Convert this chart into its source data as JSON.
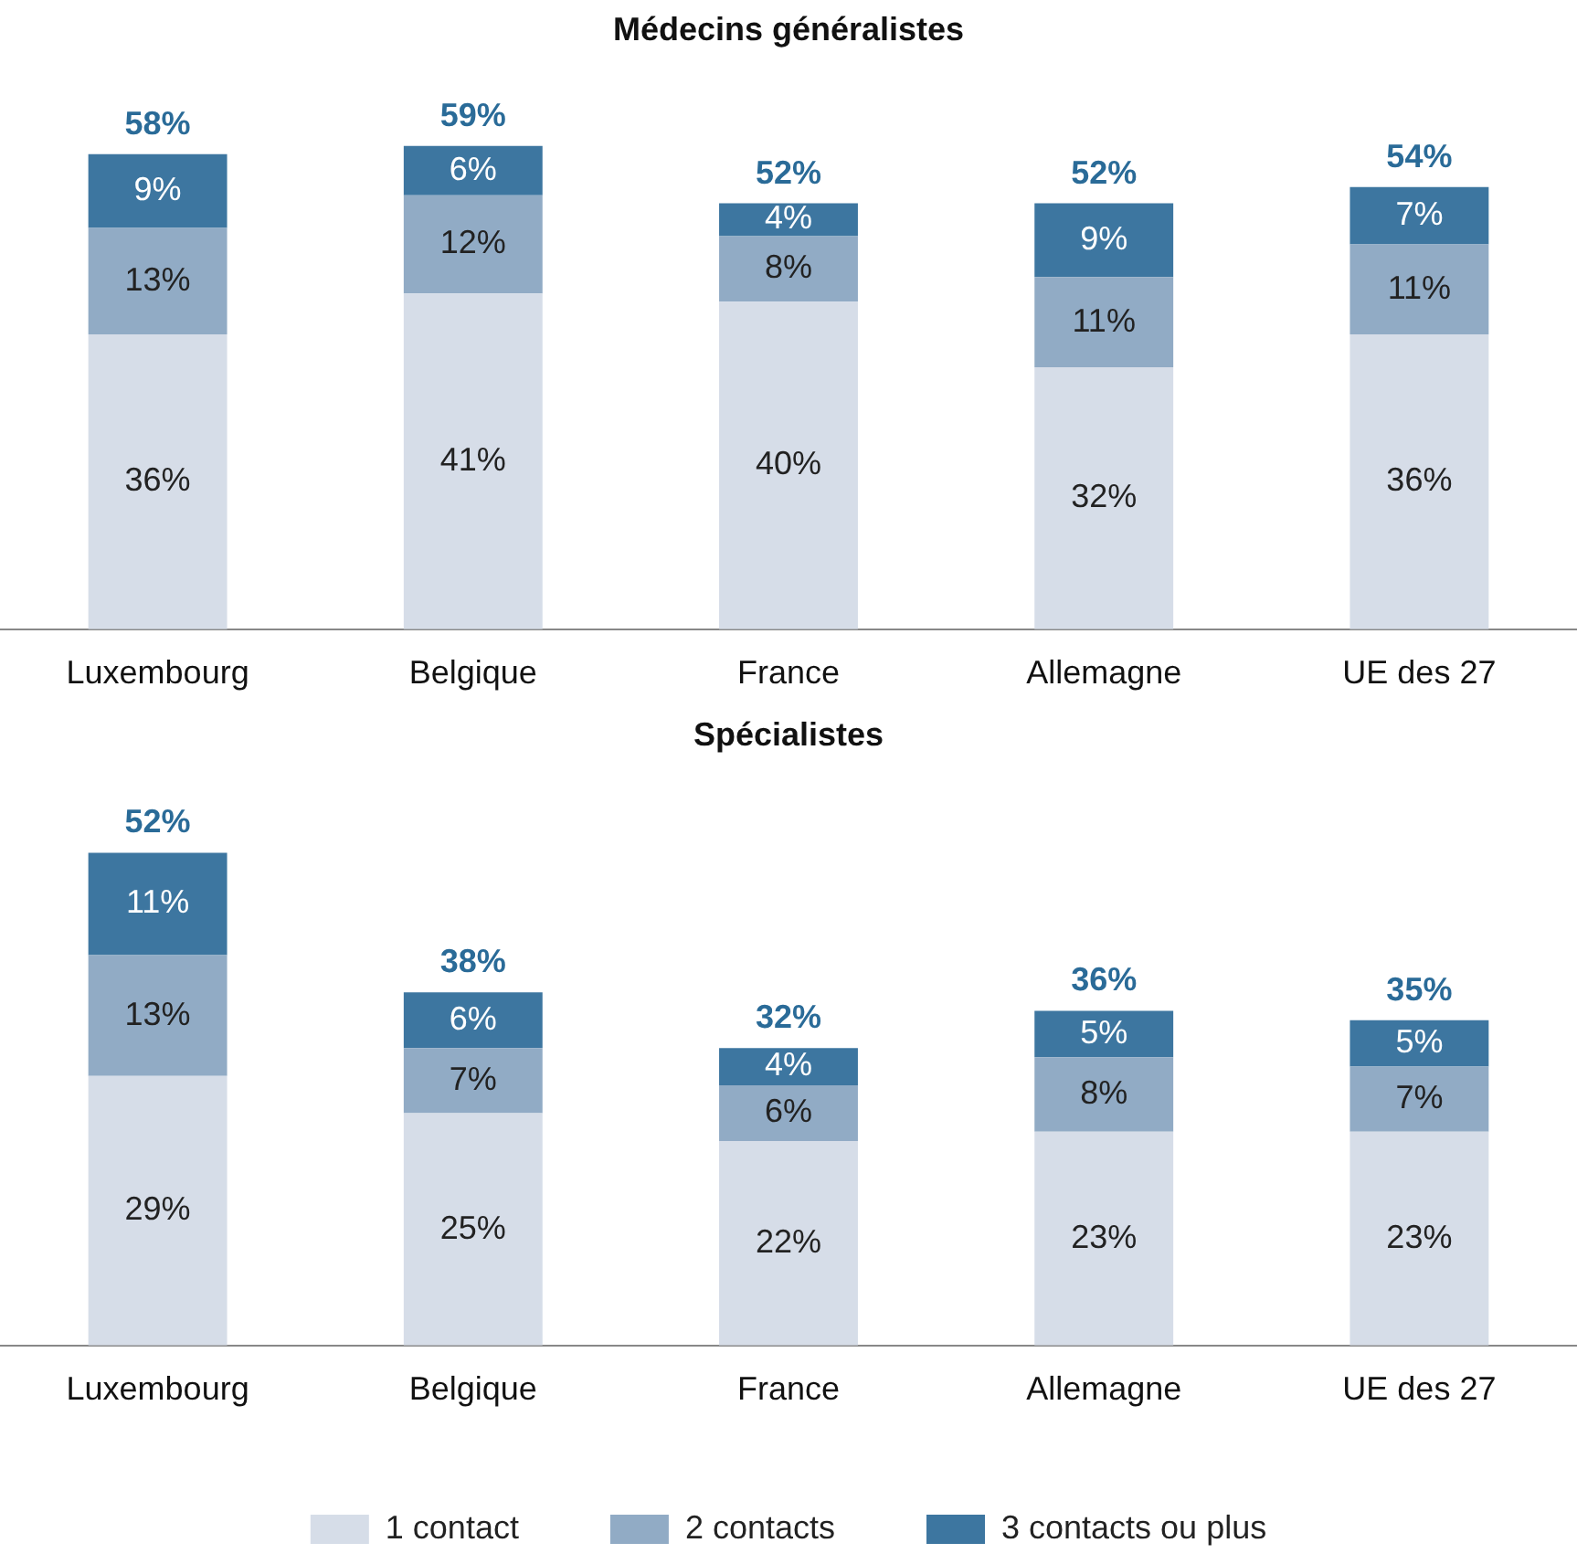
{
  "chart_data": [
    {
      "type": "bar",
      "title": "Médecins généralistes",
      "categories": [
        "Luxembourg",
        "Belgique",
        "France",
        "Allemagne",
        "UE des 27"
      ],
      "stacked": true,
      "legend": false,
      "series": [
        {
          "color": "#d6dde8",
          "values": [
            36,
            41,
            40,
            32,
            36
          ],
          "value_labels": [
            "36%",
            "41%",
            "40%",
            "32%",
            "36%"
          ]
        },
        {
          "color": "#91abc5",
          "values": [
            13,
            12,
            8,
            11,
            11
          ],
          "value_labels": [
            "13%",
            "12%",
            "8%",
            "11%",
            "11%"
          ]
        },
        {
          "color": "#3d76a0",
          "values": [
            9,
            6,
            4,
            9,
            7
          ],
          "value_labels": [
            "9%",
            "6%",
            "4%",
            "9%",
            "7%"
          ]
        }
      ],
      "totals": [
        "58%",
        "59%",
        "52%",
        "52%",
        "54%"
      ]
    },
    {
      "type": "bar",
      "title": "Spécialistes",
      "categories": [
        "Luxembourg",
        "Belgique",
        "France",
        "Allemagne",
        "UE des 27"
      ],
      "stacked": true,
      "legend": "bottom",
      "series": [
        {
          "name": "1 contact",
          "color": "#d6dde8",
          "values": [
            29,
            25,
            22,
            23,
            23
          ],
          "value_labels": [
            "29%",
            "25%",
            "22%",
            "23%",
            "23%"
          ]
        },
        {
          "name": "2 contacts",
          "color": "#91abc5",
          "values": [
            13,
            7,
            6,
            8,
            7
          ],
          "value_labels": [
            "13%",
            "7%",
            "6%",
            "8%",
            "7%"
          ]
        },
        {
          "name": "3 contacts ou plus",
          "color": "#3d76a0",
          "values": [
            11,
            6,
            4,
            5,
            5
          ],
          "value_labels": [
            "11%",
            "6%",
            "4%",
            "5%",
            "5%"
          ]
        }
      ],
      "totals": [
        "52%",
        "38%",
        "32%",
        "36%",
        "35%"
      ]
    }
  ]
}
